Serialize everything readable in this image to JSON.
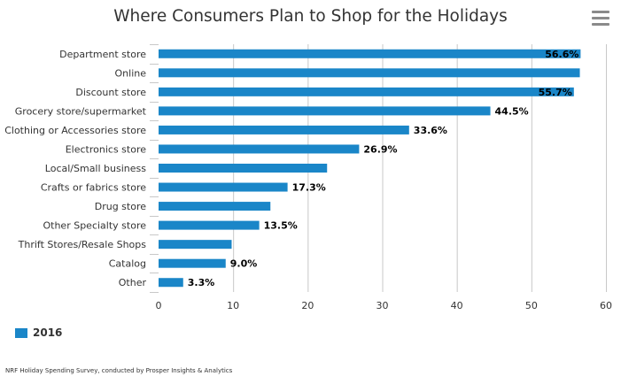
{
  "title": "Where Consumers Plan to Shop for the Holidays",
  "menu_icon": "hamburger-menu-icon",
  "source_note": "NRF Holiday Spending Survey, conducted by Prosper Insights & Analytics",
  "colors": {
    "bar": "#1a86c8",
    "grid": "#c8c8c8",
    "text": "#333333"
  },
  "chart_data": {
    "type": "bar",
    "orientation": "horizontal",
    "title": "Where Consumers Plan to Shop for the Holidays",
    "categories": [
      "Department store",
      "Online",
      "Discount store",
      "Grocery store/supermarket",
      "Clothing or Accessories store",
      "Electronics store",
      "Local/Small business",
      "Crafts or fabrics store",
      "Drug store",
      "Other Specialty store",
      "Thrift Stores/Resale Shops",
      "Catalog",
      "Other"
    ],
    "series": [
      {
        "name": "2016",
        "values": [
          56.6,
          56.5,
          55.7,
          44.5,
          33.6,
          26.9,
          22.6,
          17.3,
          15.0,
          13.5,
          9.8,
          9.0,
          3.3
        ],
        "data_labels": [
          "56.6%",
          "",
          "55.7%",
          "44.5%",
          "33.6%",
          "26.9%",
          "",
          "17.3%",
          "",
          "13.5%",
          "",
          "9.0%",
          "3.3%"
        ]
      }
    ],
    "xlim": [
      0,
      60
    ],
    "xticks": [
      0,
      10,
      20,
      30,
      40,
      50,
      60
    ],
    "grid": "vertical",
    "legend": "bottom-left"
  }
}
